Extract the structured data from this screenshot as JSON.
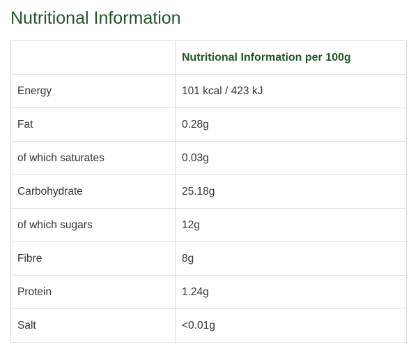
{
  "page": {
    "title": "Nutritional Information"
  },
  "table": {
    "headers": [
      "",
      "Nutritional Information per 100g"
    ],
    "rows": [
      {
        "label": "Energy",
        "value": "101 kcal / 423 kJ"
      },
      {
        "label": "Fat",
        "value": "0.28g"
      },
      {
        "label": "of which saturates",
        "value": "0.03g"
      },
      {
        "label": "Carbohydrate",
        "value": "25.18g"
      },
      {
        "label": "of which sugars",
        "value": "12g"
      },
      {
        "label": "Fibre",
        "value": "8g"
      },
      {
        "label": "Protein",
        "value": "1.24g"
      },
      {
        "label": "Salt",
        "value": "<0.01g"
      }
    ]
  },
  "colors": {
    "title": "#22562a",
    "border": "#dcdcdc",
    "text": "#333333"
  }
}
